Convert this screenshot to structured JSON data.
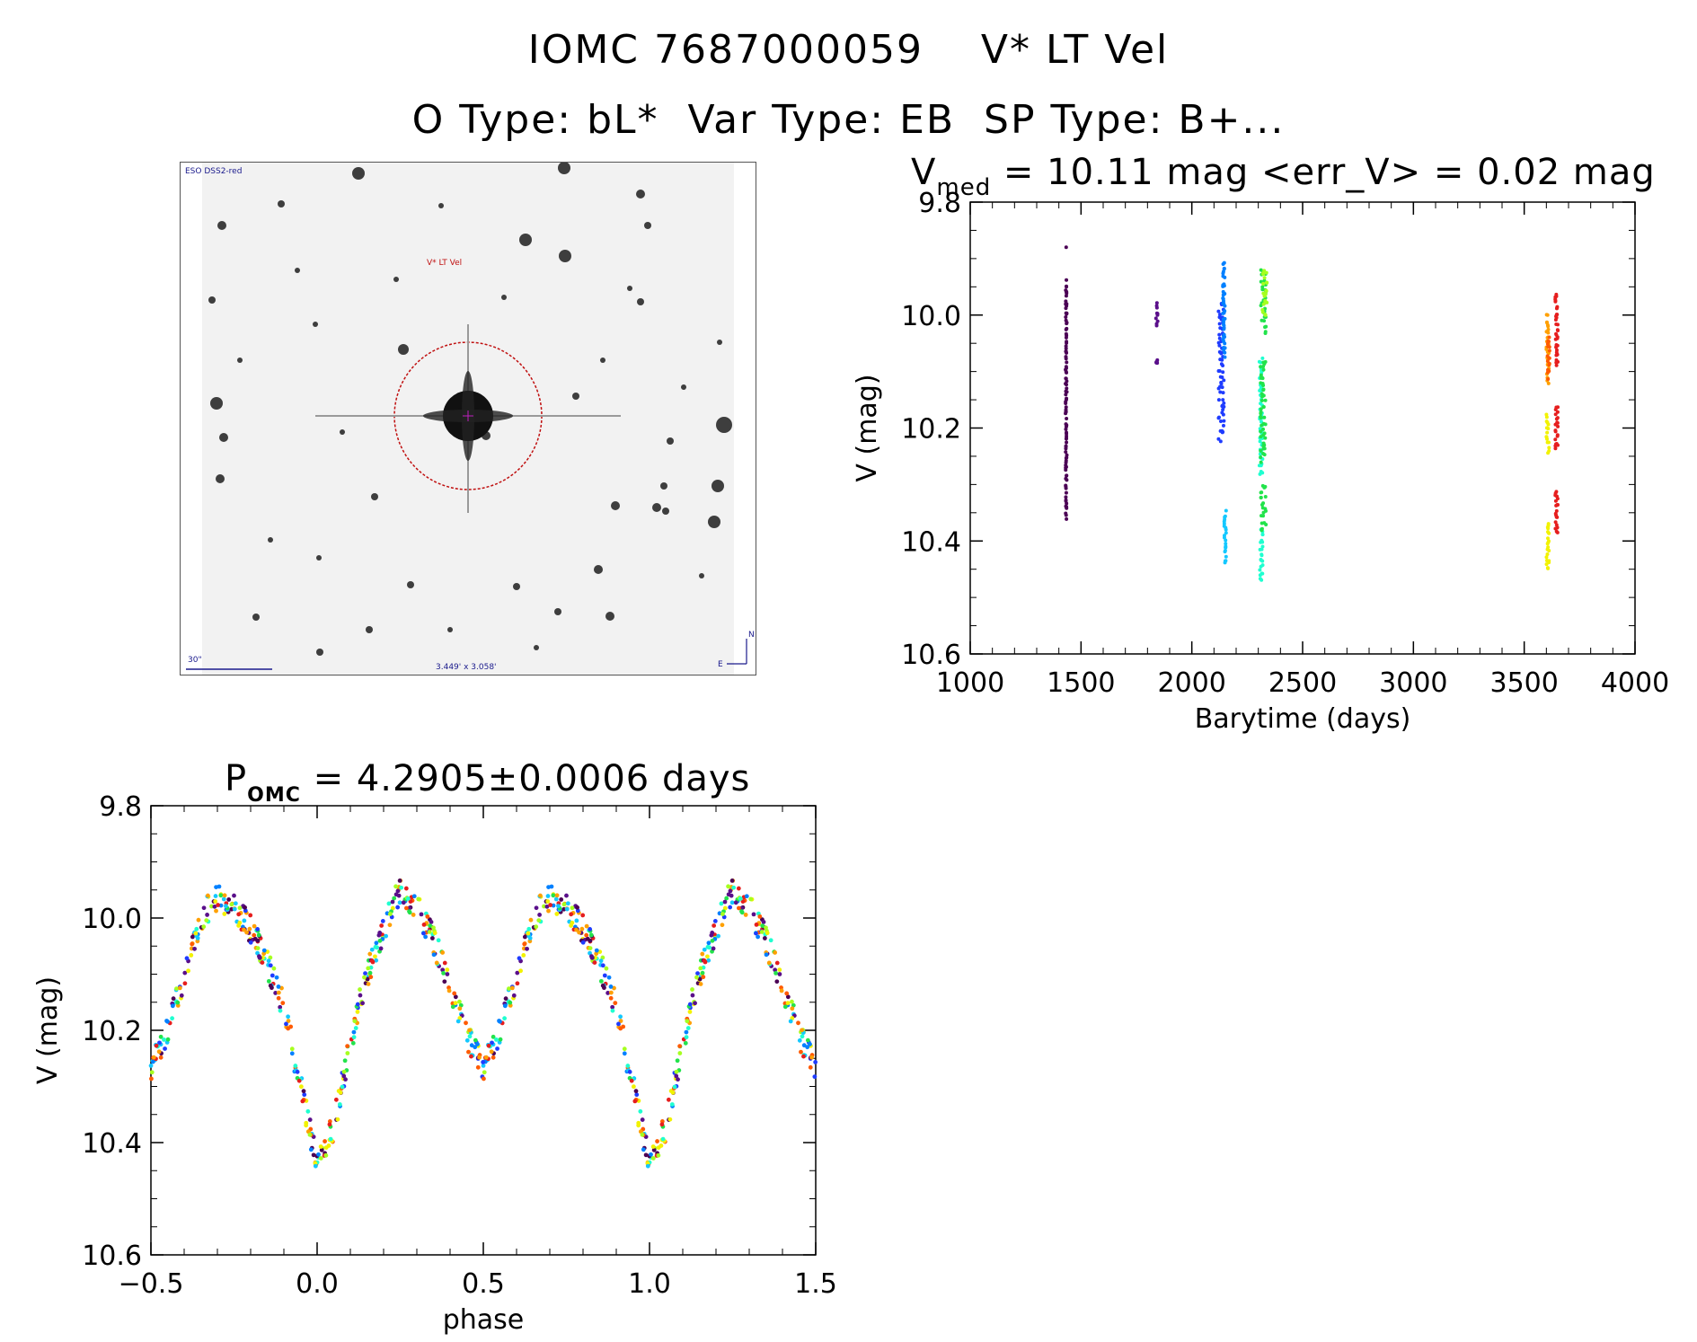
{
  "header": {
    "line1": "IOMC 7687000059    V* LT Vel",
    "line2": "O Type: bL*  Var Type: EB  SP Type: B+..."
  },
  "finder_chart": {
    "survey_label": "ESO DSS2-red",
    "target_label": "V* LT Vel",
    "scale_label": "30\"",
    "fov_label": "3.449' x 3.058'",
    "compass_n": "N",
    "compass_e": "E"
  },
  "colors": {
    "palette": [
      "#4b0055",
      "#5a0f8a",
      "#1f3cff",
      "#0080ff",
      "#14c8ff",
      "#1fffd0",
      "#22e34b",
      "#a6ff1f",
      "#f2f200",
      "#ffa000",
      "#ff5a00",
      "#e61e1e"
    ],
    "circle": "#c01010"
  },
  "chart_data": [
    {
      "type": "scatter",
      "title": "V_med = 10.11 mag <err_V> = 0.02 mag",
      "title_parts": {
        "v": "V",
        "v_sub": "med",
        "rest": " = 10.11 mag <err_V> = 0.02 mag"
      },
      "xlabel": "Barytime (days)",
      "ylabel": "V (mag)",
      "xlim": [
        1000,
        4000
      ],
      "ylim": [
        10.6,
        9.8
      ],
      "y_inverted": true,
      "xticks": [
        1000,
        1500,
        2000,
        2500,
        3000,
        3500,
        4000
      ],
      "yticks": [
        9.8,
        10.0,
        10.2,
        10.4,
        10.6
      ],
      "ytick_labels": [
        "9.8",
        "10.0",
        "10.2",
        "10.4",
        "10.6"
      ],
      "series": [
        {
          "color_index": 0,
          "x_range": [
            1430,
            1436
          ],
          "y_ranges": [
            [
              9.94,
              10.03
            ],
            [
              10.04,
              10.18
            ],
            [
              10.19,
              10.31
            ],
            [
              10.32,
              10.36
            ]
          ],
          "y_single": 9.88
        },
        {
          "color_index": 1,
          "x_range": [
            1838,
            1846
          ],
          "y_ranges": [
            [
              9.98,
              10.02
            ],
            [
              10.08,
              10.08
            ]
          ]
        },
        {
          "color_index": 2,
          "x_range": [
            2120,
            2145
          ],
          "y_ranges": [
            [
              9.98,
              10.22
            ]
          ]
        },
        {
          "color_index": 3,
          "x_range": [
            2140,
            2150
          ],
          "y_ranges": [
            [
              9.91,
              10.07
            ]
          ]
        },
        {
          "color_index": 4,
          "x_range": [
            2145,
            2155
          ],
          "y_ranges": [
            [
              10.35,
              10.44
            ]
          ]
        },
        {
          "color_index": 5,
          "x_range": [
            2305,
            2320
          ],
          "y_ranges": [
            [
              10.08,
              10.28
            ],
            [
              10.38,
              10.47
            ]
          ]
        },
        {
          "color_index": 6,
          "x_range": [
            2310,
            2335
          ],
          "y_ranges": [
            [
              9.92,
              10.03
            ],
            [
              10.08,
              10.26
            ],
            [
              10.3,
              10.38
            ]
          ]
        },
        {
          "color_index": 7,
          "x_range": [
            2318,
            2340
          ],
          "y_ranges": [
            [
              9.92,
              10.0
            ]
          ]
        },
        {
          "color_index": 8,
          "x_range": [
            3600,
            3612
          ],
          "y_ranges": [
            [
              10.18,
              10.24
            ],
            [
              10.37,
              10.45
            ]
          ]
        },
        {
          "color_index": 9,
          "x_range": [
            3600,
            3612
          ],
          "y_ranges": [
            [
              10.0,
              10.12
            ]
          ]
        },
        {
          "color_index": 10,
          "x_range": [
            3605,
            3615
          ],
          "y_ranges": [
            [
              10.04,
              10.11
            ]
          ]
        },
        {
          "color_index": 11,
          "x_range": [
            3640,
            3652
          ],
          "y_ranges": [
            [
              9.96,
              10.09
            ],
            [
              10.16,
              10.24
            ],
            [
              10.31,
              10.39
            ]
          ]
        }
      ]
    },
    {
      "type": "scatter",
      "title": "P_OMC = 4.2905±0.0006 days",
      "title_parts": {
        "p": "P",
        "p_sub": "OMC",
        "rest": " = 4.2905±0.0006 days"
      },
      "xlabel": "phase",
      "ylabel": "V (mag)",
      "xlim": [
        -0.5,
        1.5
      ],
      "ylim": [
        10.6,
        9.8
      ],
      "y_inverted": true,
      "xticks": [
        -0.5,
        0.0,
        0.5,
        1.0,
        1.5
      ],
      "xtick_labels": [
        "−0.5",
        "0.0",
        "0.5",
        "1.0",
        "1.5"
      ],
      "yticks": [
        9.8,
        10.0,
        10.2,
        10.4,
        10.6
      ],
      "ytick_labels": [
        "9.8",
        "10.0",
        "10.2",
        "10.4",
        "10.6"
      ],
      "curve": {
        "period_phase": 1.0,
        "anchors": [
          [
            0.0,
            10.44
          ],
          [
            0.05,
            10.37
          ],
          [
            0.1,
            10.22
          ],
          [
            0.15,
            10.1
          ],
          [
            0.2,
            10.02
          ],
          [
            0.25,
            9.95
          ],
          [
            0.3,
            9.98
          ],
          [
            0.35,
            10.04
          ],
          [
            0.4,
            10.12
          ],
          [
            0.45,
            10.21
          ],
          [
            0.5,
            10.27
          ],
          [
            0.55,
            10.2
          ],
          [
            0.6,
            10.1
          ],
          [
            0.65,
            10.0
          ],
          [
            0.7,
            9.96
          ],
          [
            0.75,
            9.98
          ],
          [
            0.8,
            10.02
          ],
          [
            0.85,
            10.08
          ],
          [
            0.9,
            10.16
          ],
          [
            0.95,
            10.3
          ],
          [
            1.0,
            10.44
          ]
        ]
      }
    }
  ]
}
